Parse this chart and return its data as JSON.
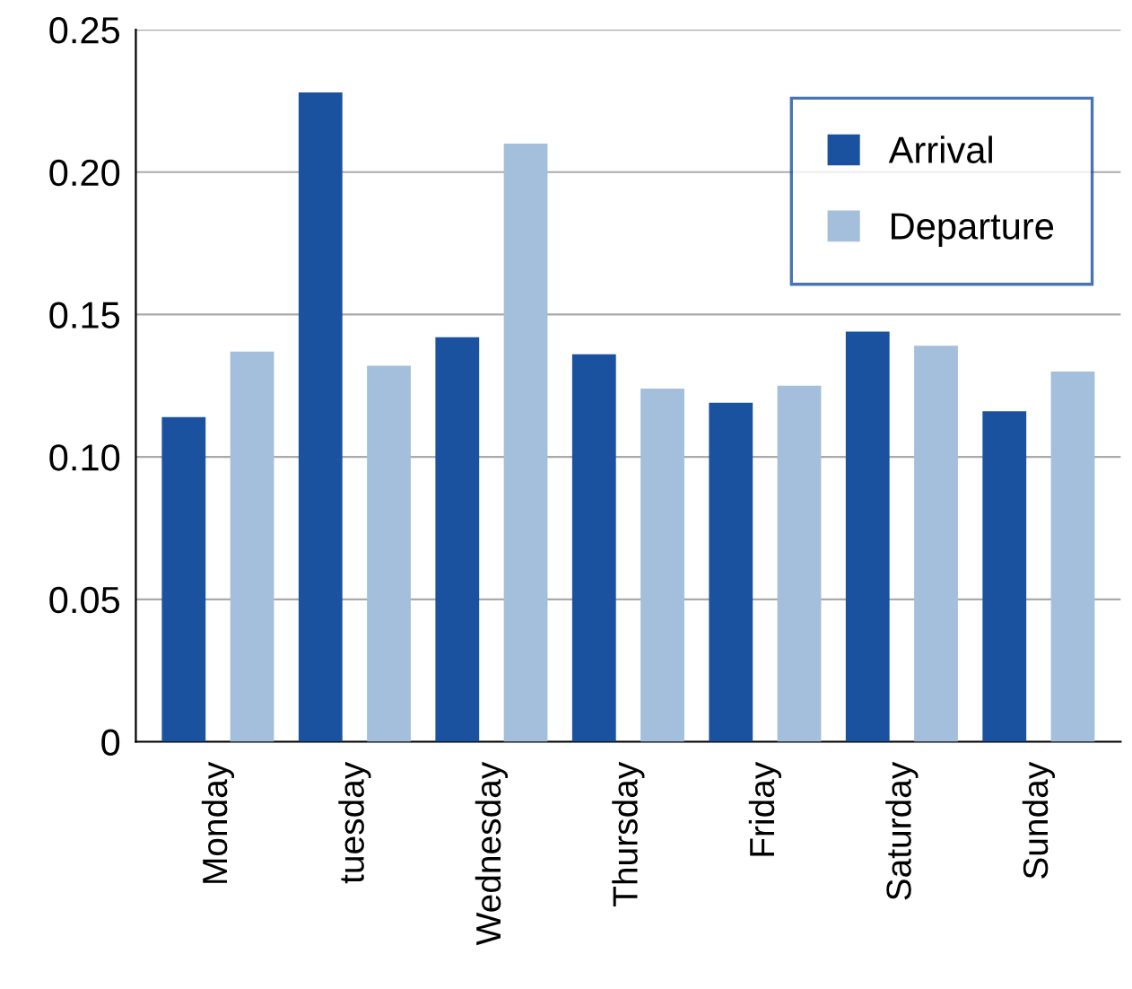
{
  "chart_data": {
    "type": "bar",
    "categories": [
      "Monday",
      "tuesday",
      "Wednesday",
      "Thursday",
      "Friday",
      "Saturday",
      "Sunday"
    ],
    "series": [
      {
        "name": "Arrival",
        "color": "#1a52a0",
        "values": [
          0.114,
          0.228,
          0.142,
          0.136,
          0.119,
          0.144,
          0.116
        ]
      },
      {
        "name": "Departure",
        "color": "#a3bfdb",
        "values": [
          0.137,
          0.132,
          0.21,
          0.124,
          0.125,
          0.139,
          0.13
        ]
      }
    ],
    "ylim": [
      0,
      0.25
    ],
    "yticks": [
      {
        "value": 0,
        "label": "0"
      },
      {
        "value": 0.05,
        "label": "0.05"
      },
      {
        "value": 0.1,
        "label": "0.10"
      },
      {
        "value": 0.15,
        "label": "0.15"
      },
      {
        "value": 0.2,
        "label": "0.20"
      },
      {
        "value": 0.25,
        "label": "0.25"
      }
    ],
    "grid": "y",
    "legend": "top right"
  }
}
